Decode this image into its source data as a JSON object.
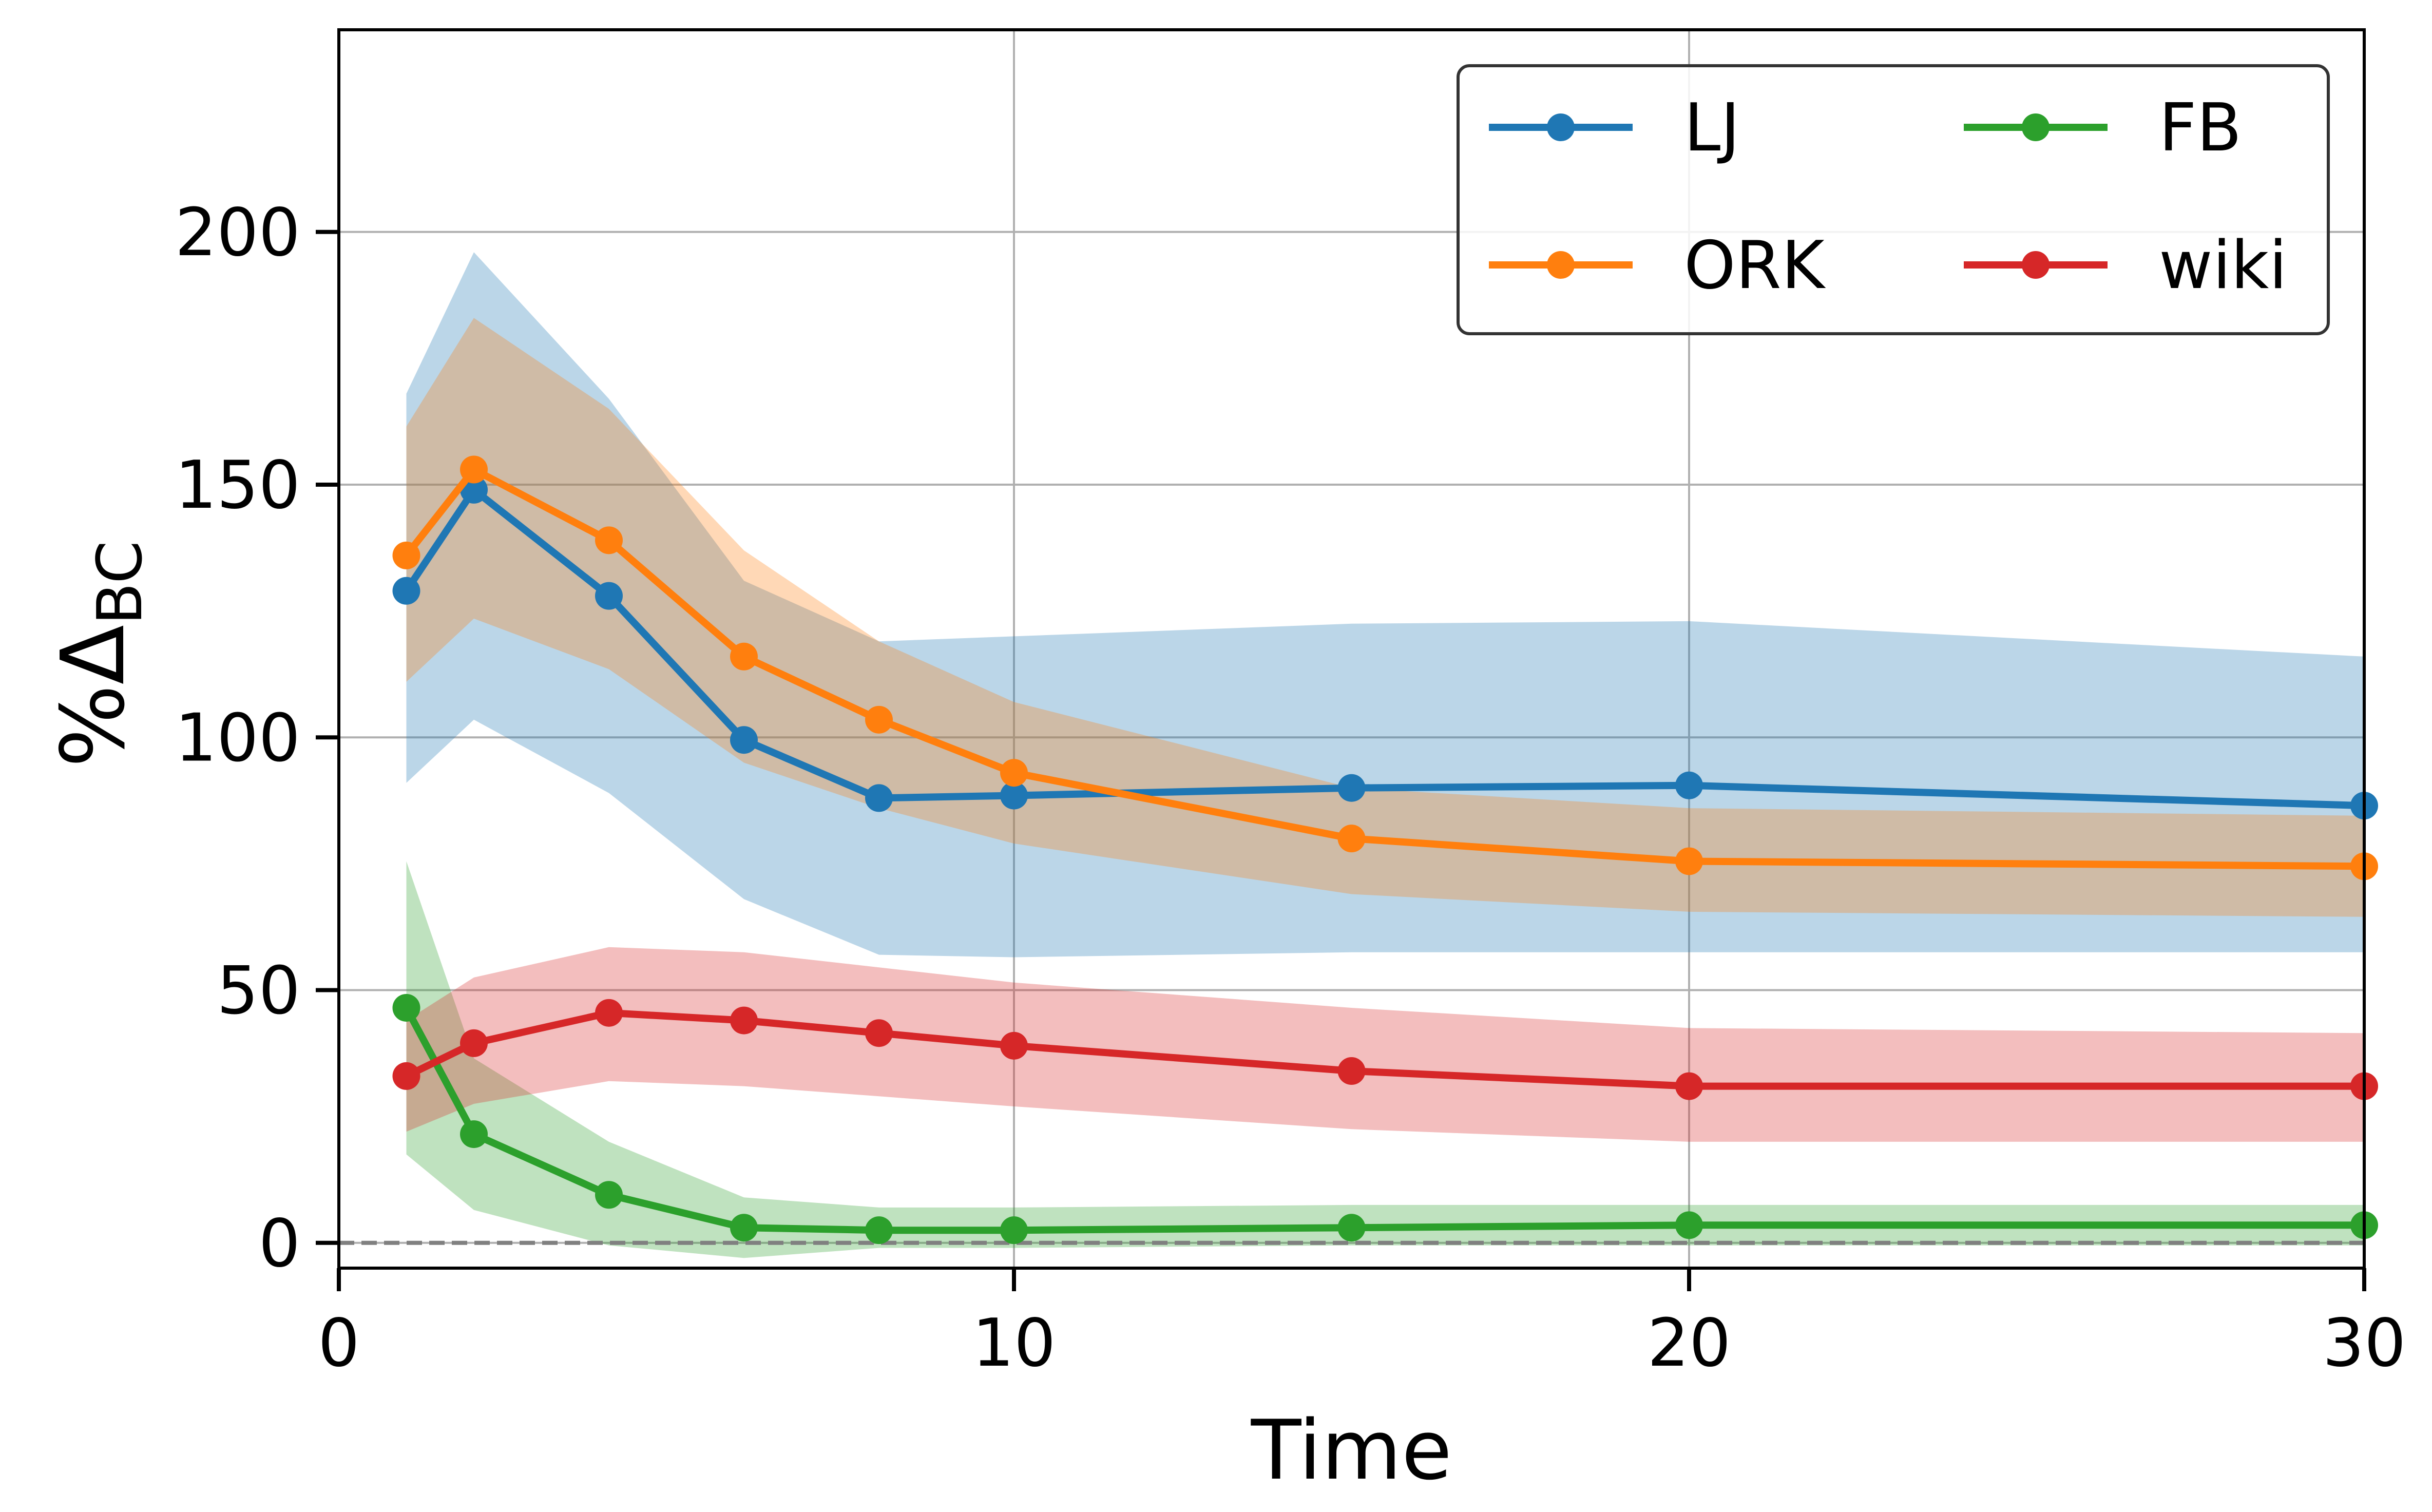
{
  "chart_data": {
    "type": "line",
    "title": "",
    "xlabel": "Time",
    "ylabel_prefix": "%Δ",
    "ylabel_sub": "BC",
    "xlim": [
      0,
      30
    ],
    "ylim": [
      -5,
      240
    ],
    "x_ticks": [
      0,
      10,
      20,
      30
    ],
    "y_ticks": [
      0,
      50,
      100,
      150,
      200
    ],
    "x_tick_labels": [
      "0",
      "10",
      "20",
      "30"
    ],
    "y_tick_labels": [
      "0",
      "50",
      "100",
      "150",
      "200"
    ],
    "grid": true,
    "legend_position": "top-right",
    "reference_line": {
      "y": 0,
      "style": "dashed",
      "color": "#808080"
    },
    "x": [
      1,
      2,
      4,
      6,
      8,
      10,
      15,
      20,
      30
    ],
    "series": [
      {
        "name": "LJ",
        "color": "#1f77b4",
        "values": [
          129,
          149,
          128,
          99.5,
          88,
          88.5,
          90,
          90.5,
          86.5
        ],
        "upper": [
          168,
          196,
          167,
          131,
          119,
          120,
          122.5,
          123,
          116
        ],
        "lower": [
          91,
          103.5,
          89,
          68,
          57,
          56.5,
          57.5,
          57.5,
          57.5
        ]
      },
      {
        "name": "ORK",
        "color": "#ff7f0e",
        "values": [
          136,
          153,
          139,
          116,
          103.5,
          93,
          80,
          75.5,
          74.5
        ],
        "upper": [
          161.5,
          183,
          165,
          137,
          119,
          107,
          90,
          86,
          84.5
        ],
        "lower": [
          111,
          123.5,
          113.5,
          95,
          86,
          79,
          69,
          65.5,
          64.5
        ]
      },
      {
        "name": "FB",
        "color": "#2ca02c",
        "values": [
          46.5,
          21.5,
          9.5,
          3,
          2.5,
          2.5,
          3,
          3.5,
          3.5
        ],
        "upper": [
          75.5,
          36.5,
          20,
          9,
          7,
          7,
          7.5,
          7.5,
          7.5
        ],
        "lower": [
          17.5,
          6.5,
          -0.5,
          -3,
          -1,
          -1,
          -0.5,
          -0.5,
          -0.5
        ]
      },
      {
        "name": "wiki",
        "color": "#d62728",
        "values": [
          33,
          39.5,
          45.5,
          44,
          41.5,
          39,
          34,
          31,
          31
        ],
        "upper": [
          44,
          52.5,
          58.5,
          57.5,
          54.5,
          51.5,
          46.5,
          42.5,
          41.5
        ],
        "lower": [
          22,
          27.5,
          32,
          31,
          29,
          27,
          22.5,
          20,
          20
        ]
      }
    ]
  }
}
